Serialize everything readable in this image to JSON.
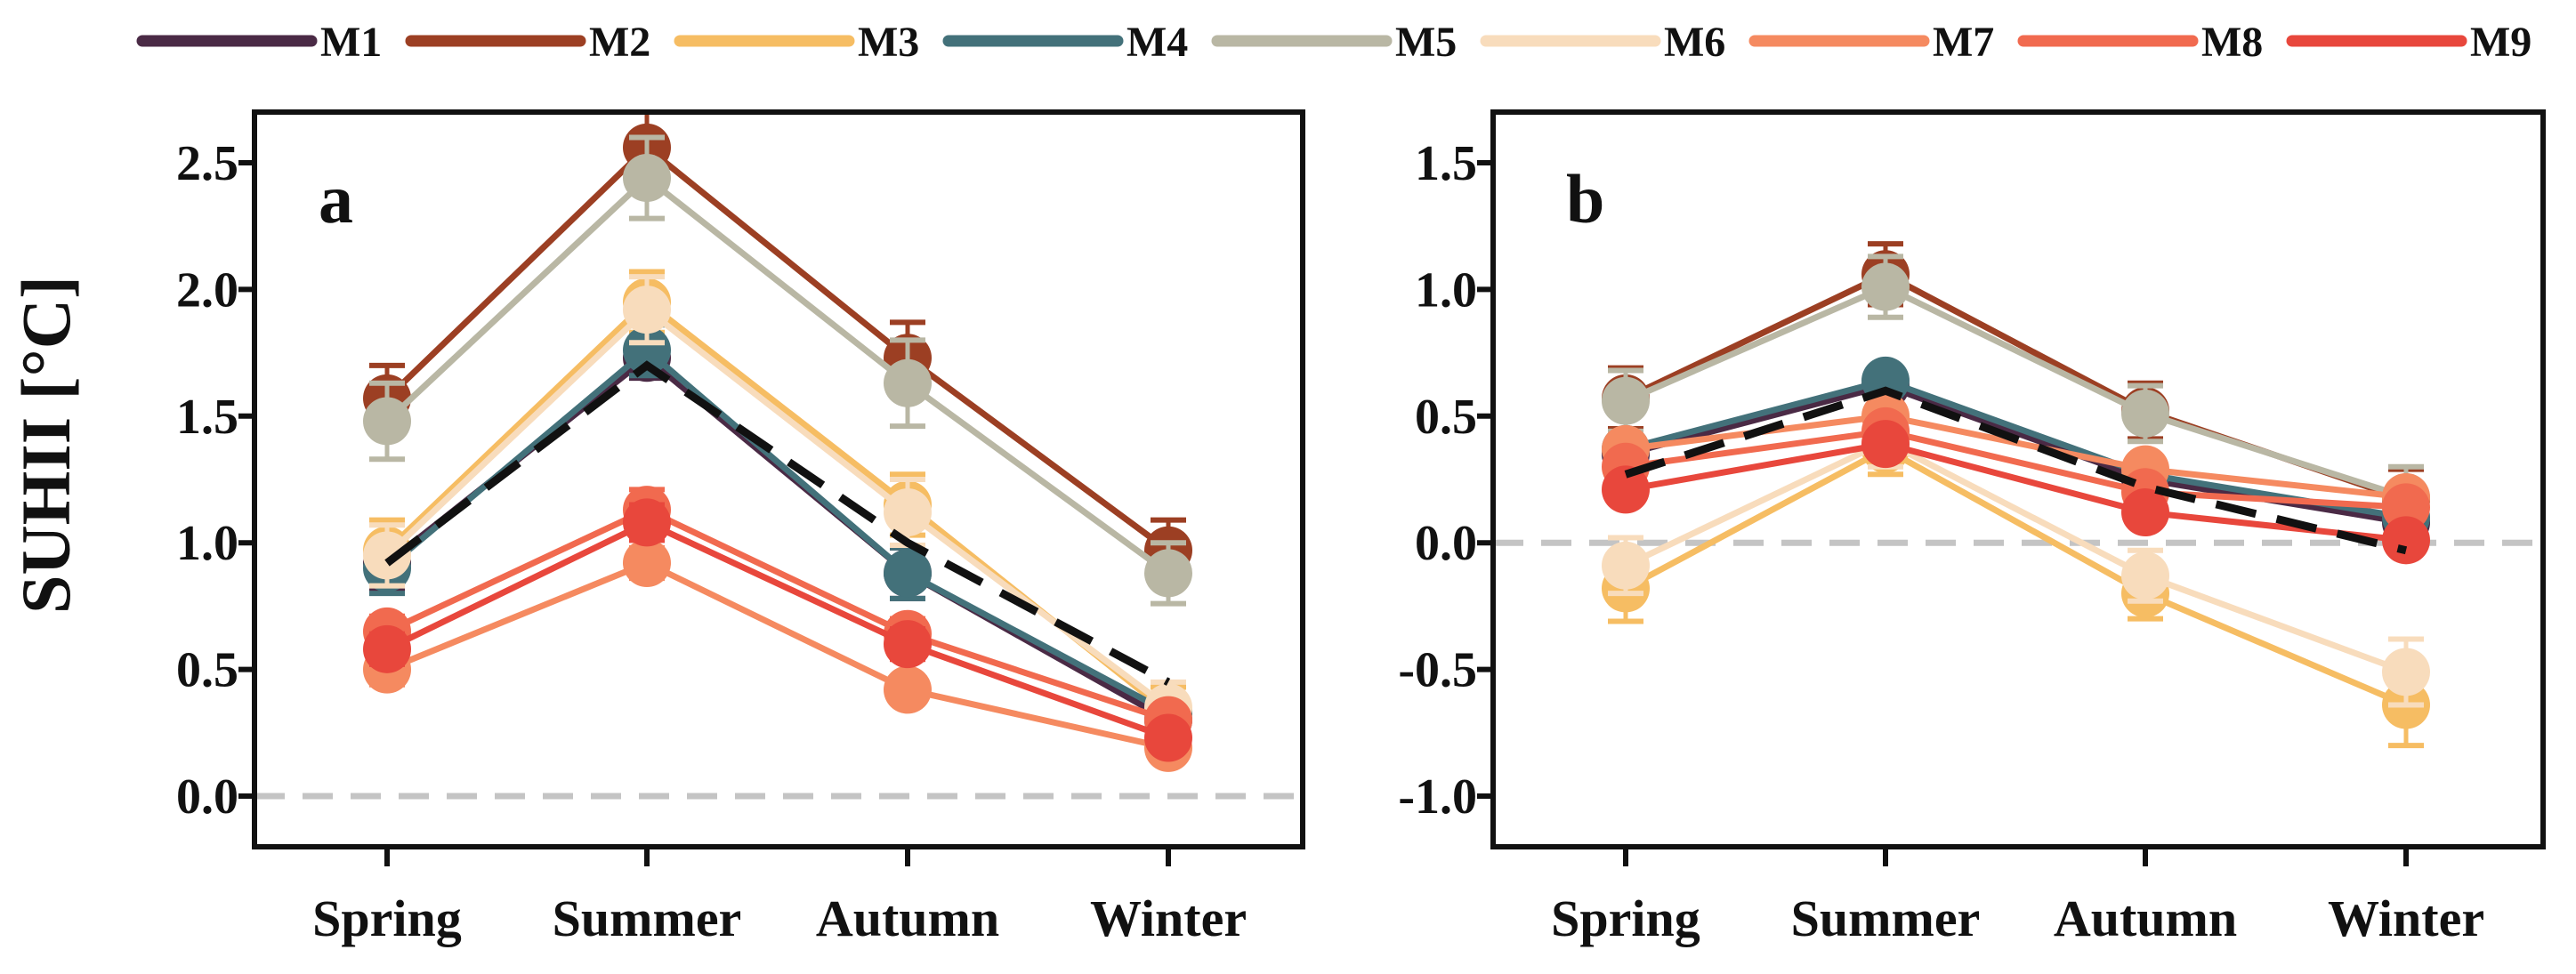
{
  "legend": [
    {
      "label": "M1",
      "color": "#4a2a45"
    },
    {
      "label": "M2",
      "color": "#9c3f23"
    },
    {
      "label": "M3",
      "color": "#f6bd63"
    },
    {
      "label": "M4",
      "color": "#43717a"
    },
    {
      "label": "M5",
      "color": "#b9b7a4"
    },
    {
      "label": "M6",
      "color": "#f8dcbc"
    },
    {
      "label": "M7",
      "color": "#f58a60"
    },
    {
      "label": "M8",
      "color": "#f16a4f"
    },
    {
      "label": "M9",
      "color": "#e8473c"
    }
  ],
  "ylabel": "SUHII [°C]",
  "chart_data": [
    {
      "type": "line",
      "panel": "a",
      "categories": [
        "Spring",
        "Summer",
        "Autumn",
        "Winter"
      ],
      "ylim": [
        -0.2,
        2.7
      ],
      "yticks": [
        0.0,
        0.5,
        1.0,
        1.5,
        2.0,
        2.5
      ],
      "ytick_labels": [
        "0.0",
        "0.5",
        "1.0",
        "1.5",
        "2.0",
        "2.5"
      ],
      "xlabel": "",
      "ylabel": "SUHII [°C]",
      "mean_line": [
        0.92,
        1.7,
        1.0,
        0.45
      ],
      "series": [
        {
          "name": "M1",
          "values": [
            0.92,
            1.73,
            0.88,
            0.3
          ],
          "errors": [
            0.1,
            0.08,
            0.1,
            0.05
          ]
        },
        {
          "name": "M2",
          "values": [
            1.57,
            2.56,
            1.73,
            0.97
          ],
          "errors": [
            0.13,
            0.14,
            0.14,
            0.12
          ]
        },
        {
          "name": "M3",
          "values": [
            0.97,
            1.95,
            1.15,
            0.33
          ],
          "errors": [
            0.12,
            0.12,
            0.12,
            0.1
          ]
        },
        {
          "name": "M4",
          "values": [
            0.9,
            1.76,
            0.88,
            0.33
          ],
          "errors": [
            0.1,
            0.1,
            0.1,
            0.05
          ]
        },
        {
          "name": "M5",
          "values": [
            1.48,
            2.44,
            1.63,
            0.88
          ],
          "errors": [
            0.15,
            0.16,
            0.17,
            0.12
          ]
        },
        {
          "name": "M6",
          "values": [
            0.95,
            1.92,
            1.12,
            0.35
          ],
          "errors": [
            0.12,
            0.13,
            0.13,
            0.1
          ]
        },
        {
          "name": "M7",
          "values": [
            0.5,
            0.92,
            0.42,
            0.19
          ],
          "errors": [
            0.06,
            0.06,
            0.05,
            0.04
          ]
        },
        {
          "name": "M8",
          "values": [
            0.65,
            1.13,
            0.64,
            0.3
          ],
          "errors": [
            0.06,
            0.08,
            0.06,
            0.05
          ]
        },
        {
          "name": "M9",
          "values": [
            0.58,
            1.08,
            0.6,
            0.23
          ],
          "errors": [
            0.06,
            0.07,
            0.06,
            0.04
          ]
        }
      ]
    },
    {
      "type": "line",
      "panel": "b",
      "categories": [
        "Spring",
        "Summer",
        "Autumn",
        "Winter"
      ],
      "ylim": [
        -1.2,
        1.7
      ],
      "yticks": [
        -1.0,
        -0.5,
        0.0,
        0.5,
        1.0,
        1.5
      ],
      "ytick_labels": [
        "-1.0",
        "-0.5",
        "0.0",
        "0.5",
        "1.0",
        "1.5"
      ],
      "xlabel": "",
      "ylabel": "",
      "mean_line": [
        0.27,
        0.6,
        0.22,
        -0.03
      ],
      "series": [
        {
          "name": "M1",
          "values": [
            0.35,
            0.62,
            0.25,
            0.08
          ],
          "errors": [
            0.05,
            0.05,
            0.05,
            0.04
          ]
        },
        {
          "name": "M2",
          "values": [
            0.57,
            1.06,
            0.52,
            0.17
          ],
          "errors": [
            0.12,
            0.12,
            0.11,
            0.12
          ]
        },
        {
          "name": "M3",
          "values": [
            -0.18,
            0.37,
            -0.2,
            -0.64
          ],
          "errors": [
            0.13,
            0.1,
            0.1,
            0.16
          ]
        },
        {
          "name": "M4",
          "values": [
            0.37,
            0.64,
            0.27,
            0.1
          ],
          "errors": [
            0.05,
            0.05,
            0.05,
            0.04
          ]
        },
        {
          "name": "M5",
          "values": [
            0.56,
            1.01,
            0.51,
            0.18
          ],
          "errors": [
            0.12,
            0.12,
            0.11,
            0.12
          ]
        },
        {
          "name": "M6",
          "values": [
            -0.09,
            0.4,
            -0.13,
            -0.51
          ],
          "errors": [
            0.11,
            0.1,
            0.1,
            0.13
          ]
        },
        {
          "name": "M7",
          "values": [
            0.37,
            0.5,
            0.29,
            0.18
          ],
          "errors": [
            0.05,
            0.05,
            0.05,
            0.04
          ]
        },
        {
          "name": "M8",
          "values": [
            0.3,
            0.44,
            0.2,
            0.14
          ],
          "errors": [
            0.05,
            0.05,
            0.05,
            0.04
          ]
        },
        {
          "name": "M9",
          "values": [
            0.21,
            0.39,
            0.12,
            0.01
          ],
          "errors": [
            0.05,
            0.05,
            0.05,
            0.04
          ]
        }
      ]
    }
  ]
}
